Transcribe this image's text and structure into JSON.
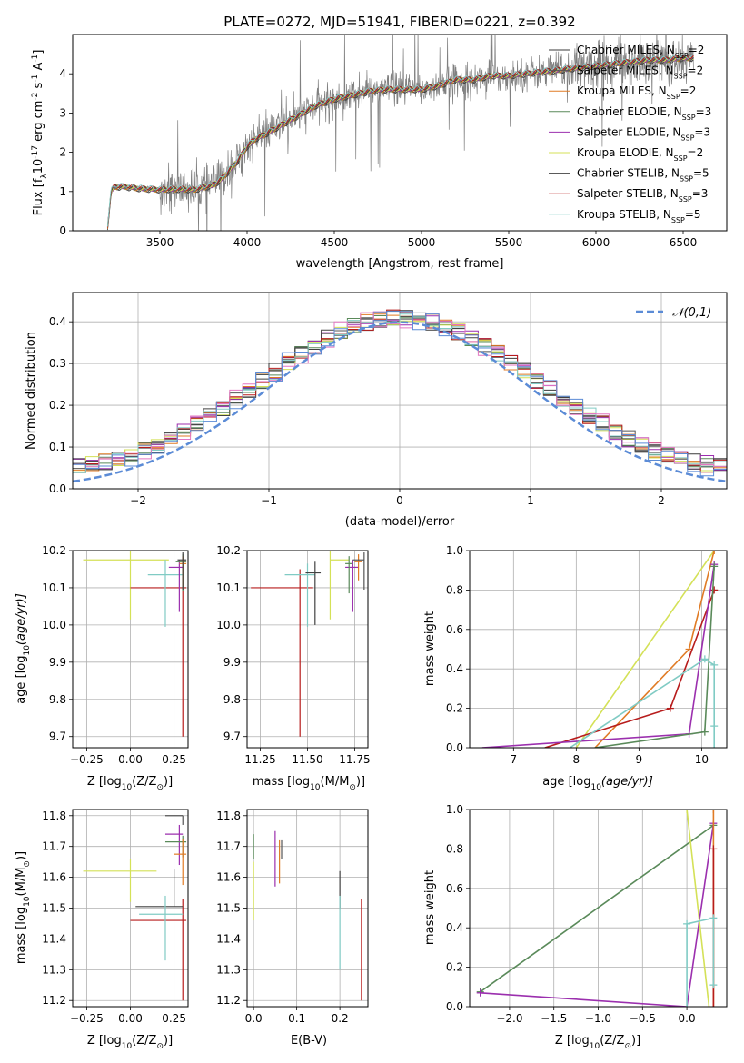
{
  "title": "PLATE=0272, MJD=51941, FIBERID=0221, z=0.392",
  "colors": {
    "Chabrier MILES": "#3a3a3a",
    "Salpeter MILES": "#555555",
    "Kroupa MILES": "#e07b25",
    "Chabrier ELODIE": "#5a8a5a",
    "Salpeter ELODIE": "#9b2fae",
    "Kroupa ELODIE": "#d4e157",
    "Chabrier STELIB": "#424242",
    "Salpeter STELIB": "#b71c1c",
    "Kroupa STELIB": "#80cbc4",
    "data": "#808080",
    "normal": "#5b8bd6"
  },
  "legend": [
    {
      "name": "Chabrier MILES",
      "nssp": "2"
    },
    {
      "name": "Salpeter MILES",
      "nssp": "2"
    },
    {
      "name": "Kroupa MILES",
      "nssp": "2"
    },
    {
      "name": "Chabrier ELODIE",
      "nssp": "3"
    },
    {
      "name": "Salpeter ELODIE",
      "nssp": "3"
    },
    {
      "name": "Kroupa ELODIE",
      "nssp": "2"
    },
    {
      "name": "Chabrier STELIB",
      "nssp": "5"
    },
    {
      "name": "Salpeter STELIB",
      "nssp": "3"
    },
    {
      "name": "Kroupa STELIB",
      "nssp": "5"
    }
  ],
  "chart_data": [
    {
      "id": "spectrum",
      "type": "line",
      "xlabel": "wavelength [Angstrom, rest frame]",
      "ylabel_parts": [
        "Flux [f",
        "λ",
        "10",
        "-17",
        " erg cm",
        "-2",
        " s",
        "-1",
        " A",
        "-1",
        "]"
      ],
      "xlim": [
        3000,
        6750
      ],
      "ylim": [
        0,
        5
      ],
      "xticks": [
        3500,
        4000,
        4500,
        5000,
        5500,
        6000,
        6500
      ],
      "yticks": [
        0,
        1,
        2,
        3,
        4
      ],
      "model_curve": {
        "x": [
          3200,
          3220,
          3240,
          3300,
          3400,
          3500,
          3600,
          3700,
          3800,
          3850,
          3900,
          3950,
          4000,
          4050,
          4100,
          4200,
          4300,
          4400,
          4500,
          4600,
          4700,
          4800,
          4900,
          5000,
          5100,
          5200,
          5300,
          5400,
          5500,
          5600,
          5700,
          5800,
          5900,
          6000,
          6100,
          6200,
          6300,
          6400,
          6500,
          6550
        ],
        "y": [
          0.1,
          1.0,
          1.12,
          1.12,
          1.07,
          1.05,
          1.06,
          1.05,
          1.15,
          1.3,
          1.55,
          1.8,
          2.15,
          2.35,
          2.45,
          2.7,
          2.95,
          3.2,
          3.35,
          3.45,
          3.55,
          3.6,
          3.6,
          3.6,
          3.7,
          3.85,
          3.85,
          3.95,
          3.95,
          4.0,
          4.05,
          4.1,
          4.15,
          4.2,
          4.25,
          4.3,
          4.35,
          4.35,
          4.4,
          4.4
        ]
      }
    },
    {
      "id": "residuals",
      "type": "bar",
      "xlabel": "(data-model)/error",
      "ylabel": "Normed distribution",
      "xlim": [
        -2.5,
        2.5
      ],
      "ylim": [
        0,
        0.47
      ],
      "xticks": [
        -2,
        -1,
        0,
        1,
        2
      ],
      "yticks": [
        0.0,
        0.1,
        0.2,
        0.3,
        0.4
      ],
      "legend_label": "N(0,1)"
    },
    {
      "id": "age-vs-Z",
      "type": "scatter",
      "xlabel_parts": [
        "Z [log",
        "10",
        "(Z/Z",
        "⊙",
        ")]"
      ],
      "ylabel_parts": [
        "age  [log",
        "10",
        "(age/yr)]"
      ],
      "xlim": [
        -0.33,
        0.33
      ],
      "ylim": [
        9.67,
        10.2
      ],
      "xticks": [
        -0.25,
        0.0,
        0.25
      ],
      "yticks": [
        9.7,
        9.8,
        9.9,
        10.0,
        10.1,
        10.2
      ],
      "points": [
        {
          "series": "Kroupa ELODIE",
          "x": 0.0,
          "y": 10.175,
          "xerr": [
            0.27,
            0.22
          ],
          "yerr": [
            0.16,
            0.03
          ]
        },
        {
          "series": "Salpeter STELIB",
          "x": 0.3,
          "y": 10.1,
          "xerr": [
            0.3,
            0.02
          ],
          "yerr": [
            0.4,
            0.08
          ]
        },
        {
          "series": "Kroupa STELIB",
          "x": 0.2,
          "y": 10.135,
          "xerr": [
            0.1,
            0.1
          ],
          "yerr": [
            0.14,
            0.04
          ]
        },
        {
          "series": "Salpeter ELODIE",
          "x": 0.28,
          "y": 10.155,
          "xerr": [
            0.06,
            0.02
          ],
          "yerr": [
            0.12,
            0.02
          ]
        },
        {
          "series": "Chabrier ELODIE",
          "x": 0.3,
          "y": 10.17,
          "xerr": [
            0.04,
            0.02
          ],
          "yerr": [
            0.08,
            0.02
          ]
        },
        {
          "series": "Kroupa MILES",
          "x": 0.3,
          "y": 10.165,
          "xerr": [
            0.02,
            0.02
          ],
          "yerr": [
            0.06,
            0.02
          ]
        },
        {
          "series": "Chabrier STELIB",
          "x": 0.3,
          "y": 10.175,
          "xerr": [
            0.03,
            0.02
          ],
          "yerr": [
            0.08,
            0.02
          ]
        }
      ]
    },
    {
      "id": "age-vs-mass",
      "type": "scatter",
      "xlabel_parts": [
        "mass [log",
        "10",
        "(M/M",
        "⊙",
        ")]"
      ],
      "xlim": [
        11.18,
        11.82
      ],
      "ylim": [
        9.67,
        10.2
      ],
      "xticks": [
        11.25,
        11.5,
        11.75
      ],
      "yticks": [
        9.7,
        9.8,
        9.9,
        10.0,
        10.1,
        10.2
      ],
      "points": [
        {
          "series": "Salpeter STELIB",
          "x": 11.46,
          "y": 10.1,
          "xerr": [
            0.26,
            0.07
          ],
          "yerr": [
            0.4,
            0.05
          ]
        },
        {
          "series": "Kroupa STELIB",
          "x": 11.5,
          "y": 10.135,
          "xerr": [
            0.12,
            0.04
          ],
          "yerr": [
            0.14,
            0.03
          ]
        },
        {
          "series": "Kroupa ELODIE",
          "x": 11.62,
          "y": 10.175,
          "xerr": [
            0.0,
            0.1
          ],
          "yerr": [
            0.16,
            0.03
          ]
        },
        {
          "series": "Salpeter ELODIE",
          "x": 11.74,
          "y": 10.155,
          "xerr": [
            0.04,
            0.03
          ],
          "yerr": [
            0.12,
            0.02
          ]
        },
        {
          "series": "Chabrier ELODIE",
          "x": 11.72,
          "y": 10.165,
          "xerr": [
            0.02,
            0.02
          ],
          "yerr": [
            0.08,
            0.02
          ]
        },
        {
          "series": "Chabrier STELIB",
          "x": 11.54,
          "y": 10.14,
          "xerr": [
            0.05,
            0.03
          ],
          "yerr": [
            0.14,
            0.03
          ]
        },
        {
          "series": "Kroupa MILES",
          "x": 11.77,
          "y": 10.17,
          "xerr": [
            0.02,
            0.02
          ],
          "yerr": [
            0.05,
            0.02
          ]
        },
        {
          "series": "Salpeter MILES",
          "x": 11.8,
          "y": 10.175,
          "xerr": [
            0.06,
            0.0
          ],
          "yerr": [
            0.08,
            0.02
          ]
        }
      ]
    },
    {
      "id": "weight-vs-age",
      "type": "line",
      "xlabel_parts": [
        "age  [log",
        "10",
        "(age/yr)]"
      ],
      "ylabel": "mass weight",
      "xlim": [
        6.3,
        10.4
      ],
      "ylim": [
        0,
        1
      ],
      "xticks": [
        7,
        8,
        9,
        10
      ],
      "yticks": [
        0.0,
        0.2,
        0.4,
        0.6,
        0.8,
        1.0
      ],
      "series": [
        {
          "name": "Kroupa ELODIE",
          "x": [
            8.0,
            10.2
          ],
          "y": [
            0.0,
            1.0
          ]
        },
        {
          "name": "Kroupa MILES",
          "x": [
            8.3,
            9.8,
            10.2
          ],
          "y": [
            0.0,
            0.5,
            1.0
          ]
        },
        {
          "name": "Salpeter STELIB",
          "x": [
            7.5,
            9.5,
            10.2
          ],
          "y": [
            0.0,
            0.2,
            0.8
          ]
        },
        {
          "name": "Salpeter ELODIE",
          "x": [
            6.5,
            9.8,
            10.2
          ],
          "y": [
            0.0,
            0.07,
            0.93
          ]
        },
        {
          "name": "Chabrier ELODIE",
          "x": [
            8.3,
            10.05,
            10.2
          ],
          "y": [
            0.0,
            0.08,
            0.92
          ]
        },
        {
          "name": "Kroupa STELIB",
          "x": [
            7.9,
            10.05,
            10.2,
            10.2,
            10.2
          ],
          "y": [
            0.0,
            0.45,
            0.42,
            0.11,
            0.0
          ]
        }
      ]
    },
    {
      "id": "mass-vs-Z",
      "type": "scatter",
      "xlabel_parts": [
        "Z [log",
        "10",
        "(Z/Z",
        "⊙",
        ")]"
      ],
      "ylabel_parts": [
        "mass [log",
        "10",
        "(M/M",
        "⊙",
        ")]"
      ],
      "xlim": [
        -0.33,
        0.33
      ],
      "ylim": [
        11.18,
        11.82
      ],
      "xticks": [
        -0.25,
        0.0,
        0.25
      ],
      "yticks": [
        11.2,
        11.3,
        11.4,
        11.5,
        11.6,
        11.7,
        11.8
      ],
      "points": [
        {
          "series": "Kroupa ELODIE",
          "x": 0.0,
          "y": 11.62,
          "xerr": [
            0.27,
            0.15
          ],
          "yerr": [
            0.1,
            0.04
          ]
        },
        {
          "series": "Salpeter STELIB",
          "x": 0.3,
          "y": 11.46,
          "xerr": [
            0.3,
            0.02
          ],
          "yerr": [
            0.26,
            0.07
          ]
        },
        {
          "series": "Chabrier STELIB",
          "x": 0.25,
          "y": 11.505,
          "xerr": [
            0.22,
            0.05
          ],
          "yerr": [
            0.0,
            0.12
          ]
        },
        {
          "series": "Kroupa STELIB",
          "x": 0.2,
          "y": 11.48,
          "xerr": [
            0.15,
            0.1
          ],
          "yerr": [
            0.15,
            0.06
          ]
        },
        {
          "series": "Salpeter ELODIE",
          "x": 0.28,
          "y": 11.74,
          "xerr": [
            0.08,
            0.02
          ],
          "yerr": [
            0.1,
            0.03
          ]
        },
        {
          "series": "Chabrier ELODIE",
          "x": 0.3,
          "y": 11.715,
          "xerr": [
            0.1,
            0.02
          ],
          "yerr": [
            0.05,
            0.02
          ]
        },
        {
          "series": "Kroupa MILES",
          "x": 0.3,
          "y": 11.675,
          "xerr": [
            0.05,
            0.02
          ],
          "yerr": [
            0.1,
            0.05
          ]
        },
        {
          "series": "Salpeter MILES",
          "x": 0.3,
          "y": 11.8,
          "xerr": [
            0.1,
            0.0
          ],
          "yerr": [
            0.03,
            0.0
          ]
        }
      ]
    },
    {
      "id": "mass-vs-EBV",
      "type": "scatter",
      "xlabel": "E(B-V)",
      "xlim": [
        -0.015,
        0.265
      ],
      "ylim": [
        11.18,
        11.82
      ],
      "xticks": [
        0.0,
        0.1,
        0.2
      ],
      "yticks": [
        11.2,
        11.3,
        11.4,
        11.5,
        11.6,
        11.7,
        11.8
      ],
      "points": [
        {
          "series": "Kroupa ELODIE",
          "x": 0.0,
          "y": 11.6,
          "xerr": [
            0.0,
            0.0
          ],
          "yerr": [
            0.14,
            0.05
          ]
        },
        {
          "series": "Chabrier ELODIE",
          "x": 0.0,
          "y": 11.71,
          "xerr": [
            0.0,
            0.0
          ],
          "yerr": [
            0.05,
            0.03
          ]
        },
        {
          "series": "Salpeter ELODIE",
          "x": 0.05,
          "y": 11.7,
          "xerr": [
            0.0,
            0.0
          ],
          "yerr": [
            0.13,
            0.05
          ]
        },
        {
          "series": "Kroupa MILES",
          "x": 0.06,
          "y": 11.65,
          "xerr": [
            0.0,
            0.0
          ],
          "yerr": [
            0.07,
            0.07
          ]
        },
        {
          "series": "Salpeter MILES",
          "x": 0.065,
          "y": 11.68,
          "xerr": [
            0.0,
            0.0
          ],
          "yerr": [
            0.02,
            0.04
          ]
        },
        {
          "series": "Chabrier STELIB",
          "x": 0.2,
          "y": 11.55,
          "xerr": [
            0.0,
            0.0
          ],
          "yerr": [
            0.05,
            0.07
          ]
        },
        {
          "series": "Kroupa STELIB",
          "x": 0.2,
          "y": 11.45,
          "xerr": [
            0.0,
            0.0
          ],
          "yerr": [
            0.15,
            0.09
          ]
        },
        {
          "series": "Salpeter STELIB",
          "x": 0.25,
          "y": 11.36,
          "xerr": [
            0.0,
            0.0
          ],
          "yerr": [
            0.16,
            0.17
          ]
        }
      ]
    },
    {
      "id": "weight-vs-Z",
      "type": "line",
      "xlabel_parts": [
        "Z [log",
        "10",
        "(Z/Z",
        "⊙",
        ")]"
      ],
      "ylabel": "mass weight",
      "xlim": [
        -2.45,
        0.45
      ],
      "ylim": [
        0,
        1
      ],
      "xticks": [
        -2.0,
        -1.5,
        -1.0,
        -0.5,
        0.0
      ],
      "yticks": [
        0.0,
        0.2,
        0.4,
        0.6,
        0.8,
        1.0
      ],
      "series": [
        {
          "name": "Chabrier ELODIE",
          "x": [
            -2.33,
            0.3
          ],
          "y": [
            0.075,
            0.92
          ]
        },
        {
          "name": "Salpeter ELODIE",
          "x": [
            -2.33,
            0.0,
            0.3
          ],
          "y": [
            0.07,
            0.0,
            0.93
          ]
        },
        {
          "name": "Kroupa ELODIE",
          "x": [
            -0.0,
            0.25
          ],
          "y": [
            1.0,
            0.0
          ]
        },
        {
          "name": "Kroupa MILES",
          "x": [
            0.3,
            0.3
          ],
          "y": [
            0.0,
            1.0
          ]
        },
        {
          "name": "Salpeter STELIB",
          "x": [
            0.3,
            0.3
          ],
          "y": [
            0.0,
            0.8
          ]
        },
        {
          "name": "Kroupa STELIB",
          "x": [
            0.0,
            0.0,
            0.3,
            0.3
          ],
          "y": [
            0.0,
            0.42,
            0.45,
            0.11
          ]
        }
      ]
    }
  ]
}
